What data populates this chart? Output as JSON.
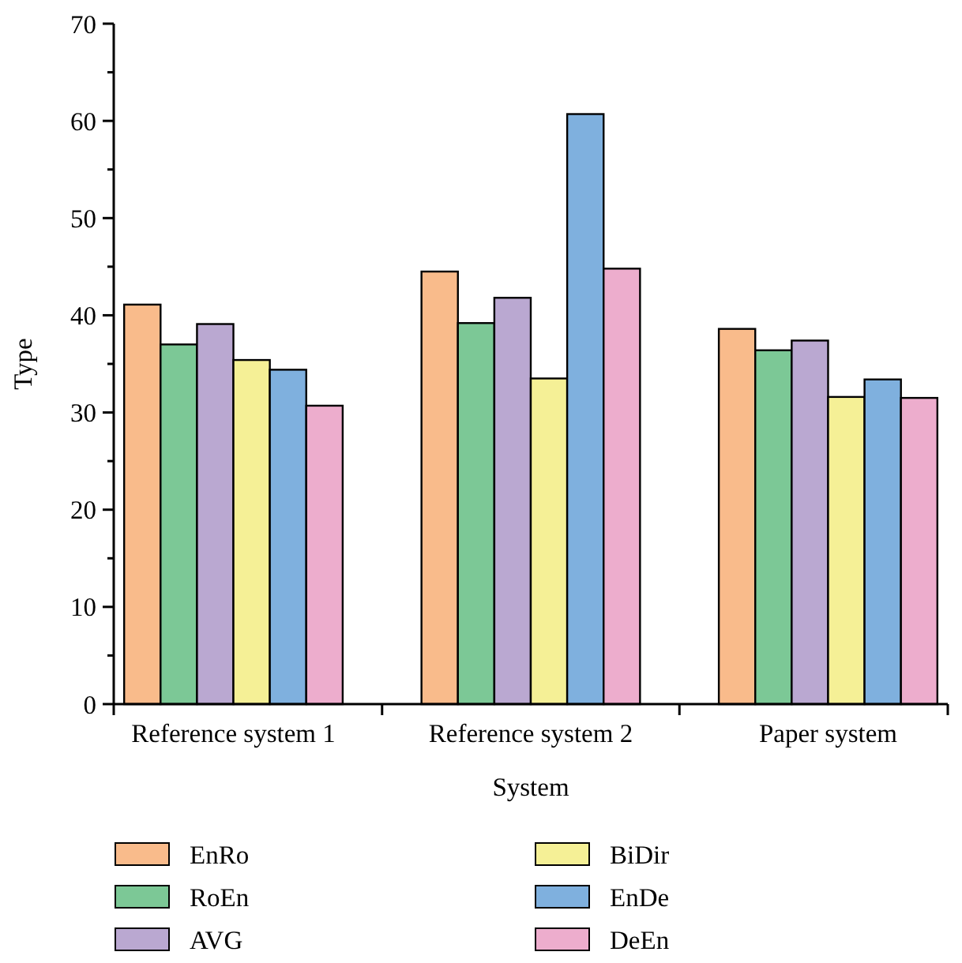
{
  "chart_data": {
    "type": "bar",
    "xlabel": "System",
    "ylabel": "Type",
    "categories": [
      "Reference system 1",
      "Reference system 2",
      "Paper system"
    ],
    "series": [
      {
        "name": "EnRo",
        "color": "#f9bb8b",
        "values": [
          41.1,
          44.5,
          38.6
        ]
      },
      {
        "name": "RoEn",
        "color": "#7cc896",
        "values": [
          37.0,
          39.2,
          36.4
        ]
      },
      {
        "name": "AVG",
        "color": "#baa8d1",
        "values": [
          39.1,
          41.8,
          37.4
        ]
      },
      {
        "name": "BiDir",
        "color": "#f5f096",
        "values": [
          35.4,
          33.5,
          31.6
        ]
      },
      {
        "name": "EnDe",
        "color": "#7fb0de",
        "values": [
          34.4,
          60.7,
          33.4
        ]
      },
      {
        "name": "DeEn",
        "color": "#edadcd",
        "values": [
          30.7,
          44.8,
          31.5
        ]
      }
    ],
    "ylim": [
      0,
      70
    ],
    "yticks": [
      0,
      {
        "value": 5,
        "label": null
      },
      10,
      {
        "value": 15,
        "label": null
      },
      20,
      {
        "value": 25,
        "label": null
      },
      30,
      {
        "value": 35,
        "label": null
      },
      40,
      {
        "value": 45,
        "label": null
      },
      50,
      {
        "value": 55,
        "label": null
      },
      60,
      {
        "value": 65,
        "label": null
      },
      70
    ],
    "legend": "bottom"
  }
}
